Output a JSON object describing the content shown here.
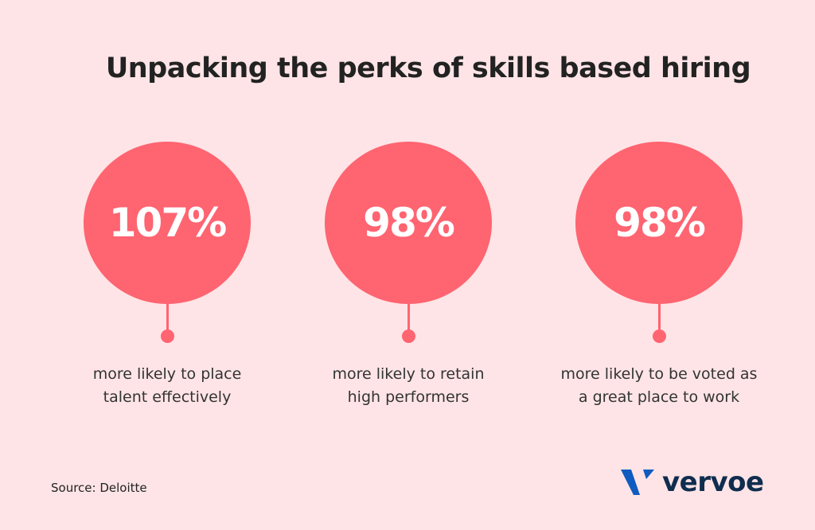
{
  "title": "Unpacking the perks of skills based hiring",
  "stats": [
    {
      "value": "107%",
      "line1": "more likely to place",
      "line2": "talent effectively"
    },
    {
      "value": "98%",
      "line1": "more likely to retain",
      "line2": "high performers"
    },
    {
      "value": "98%",
      "line1": "more likely to be voted as",
      "line2": "a great place to work"
    }
  ],
  "source": "Source: Deloitte",
  "logo": {
    "text": "vervoe",
    "icon": "vervoe-v-logo-icon"
  },
  "colors": {
    "background": "#fee4e6",
    "accent": "#ff6471",
    "brand_blue": "#0f5bbf",
    "brand_navy": "#0f2d4f"
  }
}
